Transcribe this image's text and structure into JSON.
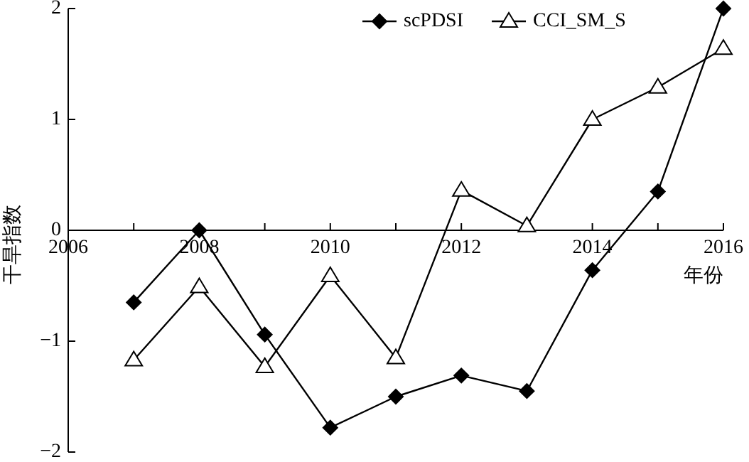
{
  "chart_data": {
    "type": "line",
    "xlabel": "年份",
    "ylabel": "干旱指数",
    "xlim": [
      2006,
      2016
    ],
    "ylim": [
      -2,
      2
    ],
    "xticks": [
      2006,
      {
        "value": 2007,
        "label": null
      },
      2008,
      {
        "value": 2009,
        "label": null
      },
      2010,
      {
        "value": 2011,
        "label": null
      },
      2012,
      {
        "value": 2013,
        "label": null
      },
      2014,
      {
        "value": 2015,
        "label": null
      },
      2016
    ],
    "yticks": [
      -2,
      -1,
      0,
      1,
      2
    ],
    "x": [
      2007,
      2008,
      2009,
      2010,
      2011,
      2012,
      2013,
      2014,
      2015,
      2016
    ],
    "series": [
      {
        "name": "scPDSI",
        "color": "#000000",
        "marker": "diamond",
        "values": [
          -0.65,
          0.0,
          -0.94,
          -1.78,
          -1.5,
          -1.31,
          -1.45,
          -0.36,
          0.35,
          2.0
        ]
      },
      {
        "name": "CCI_SM_S",
        "color": "#000000",
        "marker": "triangle",
        "values": [
          -1.17,
          -0.51,
          -1.23,
          -0.41,
          -1.15,
          0.36,
          0.04,
          1.0,
          1.29,
          1.64
        ]
      }
    ],
    "legend": "top right",
    "grid": false,
    "line_style": "solid"
  }
}
